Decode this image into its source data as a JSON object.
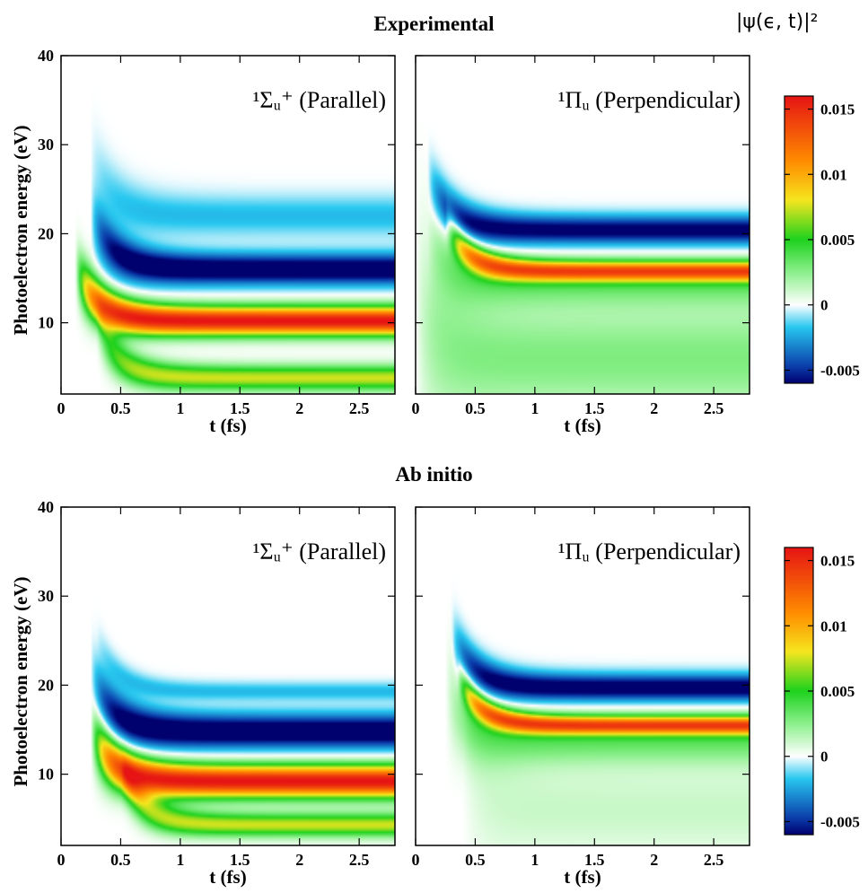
{
  "figure": {
    "colorbar_title": "|ψ(ϵ, t)|²",
    "colormap": [
      "#00006e",
      "#0a3aa8",
      "#28c8f0",
      "#ffffff",
      "#8cf08c",
      "#1ed21e",
      "#f5e61e",
      "#ff8c00",
      "#e61414"
    ],
    "colormap_stops": [
      -0.006,
      -0.0048,
      -0.0017,
      0.0,
      0.0025,
      0.005,
      0.008,
      0.011,
      0.016
    ]
  },
  "chart_data": [
    {
      "section": "Experimental",
      "type": "heatmap",
      "title": "Experimental",
      "panels": [
        {
          "label": "¹Σᵤ⁺ (Parallel)",
          "bands": [
            {
              "energy": 16.0,
              "width": 1.7,
              "amplitude": -0.0075,
              "onset": 0.25
            },
            {
              "energy": 10.2,
              "width": 1.6,
              "amplitude": 0.016,
              "onset": 0.12
            },
            {
              "energy": 3.8,
              "width": 1.4,
              "amplitude": 0.0075,
              "onset": 0.3
            },
            {
              "energy": 22.0,
              "width": 2.2,
              "amplitude": -0.002,
              "onset": 0.25
            }
          ]
        },
        {
          "label": "¹Πᵤ (Perpendicular)",
          "bands": [
            {
              "energy": 20.4,
              "width": 1.6,
              "amplitude": -0.0065,
              "onset": 0.1
            },
            {
              "energy": 15.8,
              "width": 1.1,
              "amplitude": 0.012,
              "onset": 0.25
            },
            {
              "energy": 14.5,
              "width": 2.5,
              "amplitude": 0.003,
              "onset": 0.1
            },
            {
              "energy": 6.0,
              "width": 6.0,
              "amplitude": 0.0028,
              "onset": 0.0
            }
          ]
        }
      ],
      "xlabel": "t (fs)",
      "ylabel": "Photoelectron energy (eV)",
      "xlim": [
        0,
        2.8
      ],
      "ylim": [
        2,
        40
      ],
      "xticks": [
        "0",
        "0.5",
        "1",
        "1.5",
        "2",
        "2.5"
      ],
      "xtick_values": [
        0,
        0.5,
        1,
        1.5,
        2,
        2.5
      ],
      "yticks": [
        "10",
        "20",
        "30",
        "40"
      ],
      "ytick_values": [
        10,
        20,
        30,
        40
      ],
      "colorbar": {
        "min": -0.006,
        "max": 0.016,
        "ticks": [
          "0.015",
          "0.01",
          "0.005",
          "0",
          "-0.005"
        ],
        "tick_values": [
          0.015,
          0.01,
          0.005,
          0,
          -0.005
        ]
      }
    },
    {
      "section": "Ab initio",
      "type": "heatmap",
      "title": "Ab initio",
      "panels": [
        {
          "label": "¹Σᵤ⁺ (Parallel)",
          "bands": [
            {
              "energy": 14.8,
              "width": 1.9,
              "amplitude": -0.0075,
              "onset": 0.25
            },
            {
              "energy": 9.2,
              "width": 1.8,
              "amplitude": 0.016,
              "onset": 0.25
            },
            {
              "energy": 4.3,
              "width": 1.3,
              "amplitude": 0.0075,
              "onset": 0.5
            },
            {
              "energy": 19.3,
              "width": 1.0,
              "amplitude": -0.002,
              "onset": 0.3
            }
          ]
        },
        {
          "label": "¹Πᵤ (Perpendicular)",
          "bands": [
            {
              "energy": 19.7,
              "width": 1.5,
              "amplitude": -0.007,
              "onset": 0.3
            },
            {
              "energy": 15.5,
              "width": 1.0,
              "amplitude": 0.012,
              "onset": 0.35
            },
            {
              "energy": 14.0,
              "width": 2.8,
              "amplitude": 0.0035,
              "onset": 0.25
            },
            {
              "energy": 6.0,
              "width": 5.0,
              "amplitude": 0.0012,
              "onset": 0.4
            }
          ]
        }
      ],
      "xlabel": "t (fs)",
      "ylabel": "Photoelectron energy (eV)",
      "xlim": [
        0,
        2.8
      ],
      "ylim": [
        2,
        40
      ],
      "xticks": [
        "0",
        "0.5",
        "1",
        "1.5",
        "2",
        "2.5"
      ],
      "xtick_values": [
        0,
        0.5,
        1,
        1.5,
        2,
        2.5
      ],
      "yticks": [
        "10",
        "20",
        "30",
        "40"
      ],
      "ytick_values": [
        10,
        20,
        30,
        40
      ],
      "colorbar": {
        "min": -0.006,
        "max": 0.016,
        "ticks": [
          "0.015",
          "0.01",
          "0.005",
          "0",
          "-0.005"
        ],
        "tick_values": [
          0.015,
          0.01,
          0.005,
          0,
          -0.005
        ]
      }
    }
  ]
}
